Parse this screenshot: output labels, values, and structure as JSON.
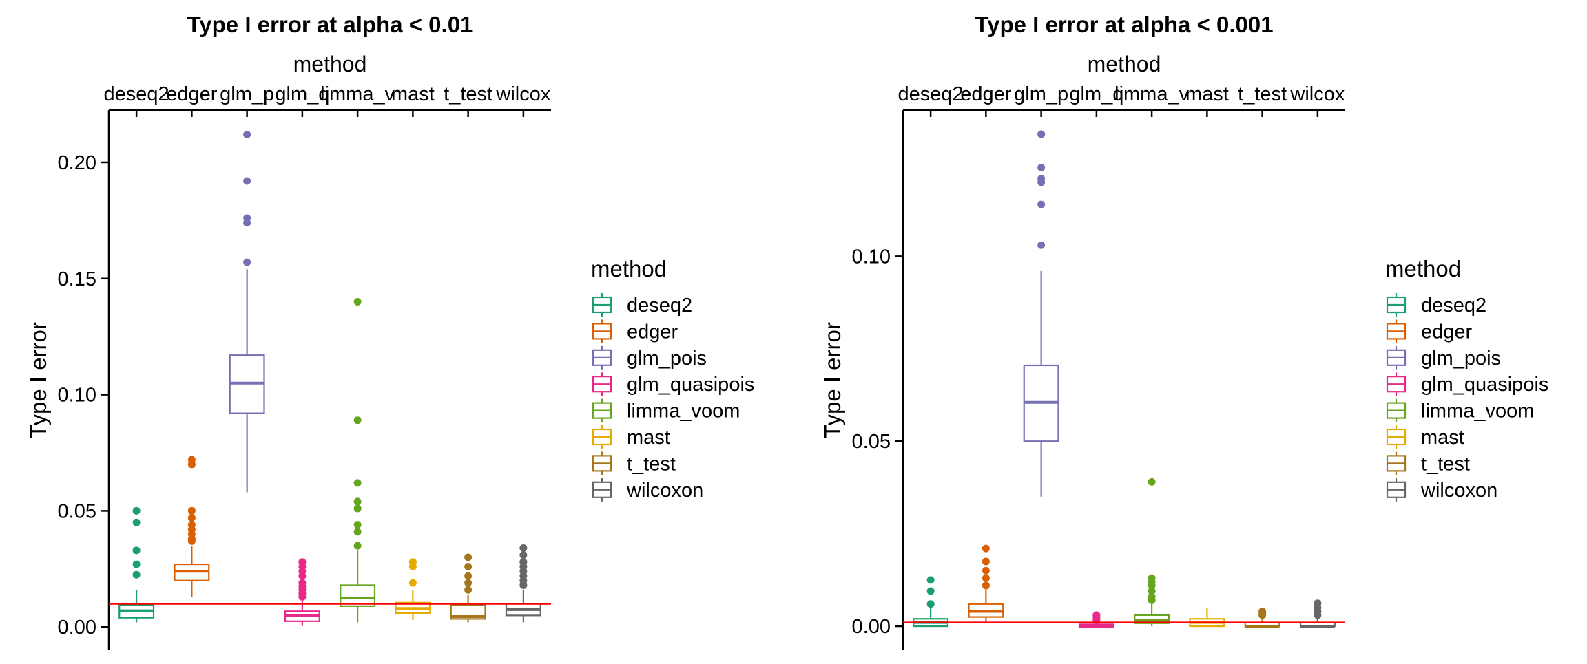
{
  "chart_data": [
    {
      "type": "boxplot",
      "title": "Type I error at alpha < 0.01",
      "xlabel": "method",
      "ylabel": "Type I error",
      "x_axis_position": "top",
      "ylim": [
        -0.01,
        0.2225
      ],
      "yticks": [
        0.0,
        0.05,
        0.1,
        0.15,
        0.2
      ],
      "ytick_labels": [
        "0.00",
        "0.05",
        "0.10",
        "0.15",
        "0.20"
      ],
      "reference_line": {
        "y": 0.01,
        "color": "#ff0000"
      },
      "categories": [
        "deseq2",
        "edger",
        "glm_pois",
        "glm_quasipois",
        "limma_voom",
        "mast",
        "t_test",
        "wilcoxon"
      ],
      "xtick_labels": [
        "deseq2",
        "edger",
        "glm_p",
        "glm_q",
        "limma_v",
        "mast",
        "t_test",
        "wilcox"
      ],
      "boxes": [
        {
          "name": "deseq2",
          "color": "#1B9E77",
          "min": 0.002,
          "q1": 0.004,
          "median": 0.007,
          "q3": 0.0095,
          "max": 0.016,
          "outliers": [
            0.0225,
            0.027,
            0.033,
            0.045,
            0.05
          ]
        },
        {
          "name": "edger",
          "color": "#D95F02",
          "min": 0.013,
          "q1": 0.02,
          "median": 0.024,
          "q3": 0.027,
          "max": 0.035,
          "outliers": [
            0.037,
            0.038,
            0.04,
            0.042,
            0.044,
            0.047,
            0.05,
            0.07,
            0.072
          ]
        },
        {
          "name": "glm_pois",
          "color": "#7570B3",
          "min": 0.058,
          "q1": 0.092,
          "median": 0.105,
          "q3": 0.117,
          "max": 0.154,
          "outliers": [
            0.157,
            0.174,
            0.176,
            0.192,
            0.212
          ]
        },
        {
          "name": "glm_quasipois",
          "color": "#E7298A",
          "min": 0.0005,
          "q1": 0.0025,
          "median": 0.005,
          "q3": 0.0068,
          "max": 0.011,
          "outliers": [
            0.013,
            0.0145,
            0.016,
            0.0175,
            0.019,
            0.022,
            0.024,
            0.026,
            0.028
          ]
        },
        {
          "name": "limma_voom",
          "color": "#66A61E",
          "min": 0.002,
          "q1": 0.009,
          "median": 0.0125,
          "q3": 0.018,
          "max": 0.033,
          "outliers": [
            0.035,
            0.041,
            0.044,
            0.051,
            0.054,
            0.062,
            0.089,
            0.14
          ]
        },
        {
          "name": "mast",
          "color": "#E6AB02",
          "min": 0.003,
          "q1": 0.006,
          "median": 0.008,
          "q3": 0.0105,
          "max": 0.016,
          "outliers": [
            0.019,
            0.026,
            0.028
          ]
        },
        {
          "name": "t_test",
          "color": "#A6761D",
          "min": 0.002,
          "q1": 0.0035,
          "median": 0.0045,
          "q3": 0.0095,
          "max": 0.014,
          "outliers": [
            0.016,
            0.019,
            0.022,
            0.026,
            0.03
          ]
        },
        {
          "name": "wilcoxon",
          "color": "#666666",
          "min": 0.002,
          "q1": 0.005,
          "median": 0.0075,
          "q3": 0.01,
          "max": 0.016,
          "outliers": [
            0.018,
            0.02,
            0.022,
            0.024,
            0.026,
            0.028,
            0.031,
            0.034
          ]
        }
      ]
    },
    {
      "type": "boxplot",
      "title": "Type I error at alpha < 0.001",
      "xlabel": "method",
      "ylabel": "Type I error",
      "x_axis_position": "top",
      "ylim": [
        -0.0065,
        0.1395
      ],
      "yticks": [
        0.0,
        0.05,
        0.1
      ],
      "ytick_labels": [
        "0.00",
        "0.05",
        "0.10"
      ],
      "reference_line": {
        "y": 0.001,
        "color": "#ff0000"
      },
      "categories": [
        "deseq2",
        "edger",
        "glm_pois",
        "glm_quasipois",
        "limma_voom",
        "mast",
        "t_test",
        "wilcoxon"
      ],
      "xtick_labels": [
        "deseq2",
        "edger",
        "glm_p",
        "glm_q",
        "limma_v",
        "mast",
        "t_test",
        "wilcox"
      ],
      "boxes": [
        {
          "name": "deseq2",
          "color": "#1B9E77",
          "min": 0.0,
          "q1": 0.0,
          "median": 0.001,
          "q3": 0.002,
          "max": 0.005,
          "outliers": [
            0.006,
            0.0095,
            0.0125
          ]
        },
        {
          "name": "edger",
          "color": "#D95F02",
          "min": 0.001,
          "q1": 0.0025,
          "median": 0.004,
          "q3": 0.006,
          "max": 0.01,
          "outliers": [
            0.011,
            0.013,
            0.015,
            0.0175,
            0.021
          ]
        },
        {
          "name": "glm_pois",
          "color": "#7570B3",
          "min": 0.035,
          "q1": 0.05,
          "median": 0.0605,
          "q3": 0.0705,
          "max": 0.096,
          "outliers": [
            0.103,
            0.114,
            0.12,
            0.121,
            0.124,
            0.133
          ]
        },
        {
          "name": "glm_quasipois",
          "color": "#E7298A",
          "min": 0.0,
          "q1": 0.0,
          "median": 0.0,
          "q3": 0.0005,
          "max": 0.001,
          "outliers": [
            0.0015,
            0.002,
            0.0025,
            0.003
          ]
        },
        {
          "name": "limma_voom",
          "color": "#66A61E",
          "min": 0.0,
          "q1": 0.0008,
          "median": 0.0015,
          "q3": 0.003,
          "max": 0.006,
          "outliers": [
            0.007,
            0.008,
            0.0095,
            0.011,
            0.012,
            0.013,
            0.039
          ]
        },
        {
          "name": "mast",
          "color": "#E6AB02",
          "min": 0.0,
          "q1": 0.0,
          "median": 0.001,
          "q3": 0.002,
          "max": 0.005,
          "outliers": []
        },
        {
          "name": "t_test",
          "color": "#A6761D",
          "min": 0.0,
          "q1": 0.0,
          "median": 0.0,
          "q3": 0.001,
          "max": 0.002,
          "outliers": [
            0.003,
            0.0035,
            0.004
          ]
        },
        {
          "name": "wilcoxon",
          "color": "#666666",
          "min": 0.0,
          "q1": 0.0,
          "median": 0.0,
          "q3": 0.001,
          "max": 0.002,
          "outliers": [
            0.003,
            0.004,
            0.005,
            0.0062
          ]
        }
      ]
    }
  ],
  "legend": {
    "title": "method",
    "position": "right",
    "items": [
      {
        "label": "deseq2",
        "color": "#1B9E77"
      },
      {
        "label": "edger",
        "color": "#D95F02"
      },
      {
        "label": "glm_pois",
        "color": "#7570B3"
      },
      {
        "label": "glm_quasipois",
        "color": "#E7298A"
      },
      {
        "label": "limma_voom",
        "color": "#66A61E"
      },
      {
        "label": "mast",
        "color": "#E6AB02"
      },
      {
        "label": "t_test",
        "color": "#A6761D"
      },
      {
        "label": "wilcoxon",
        "color": "#666666"
      }
    ]
  }
}
